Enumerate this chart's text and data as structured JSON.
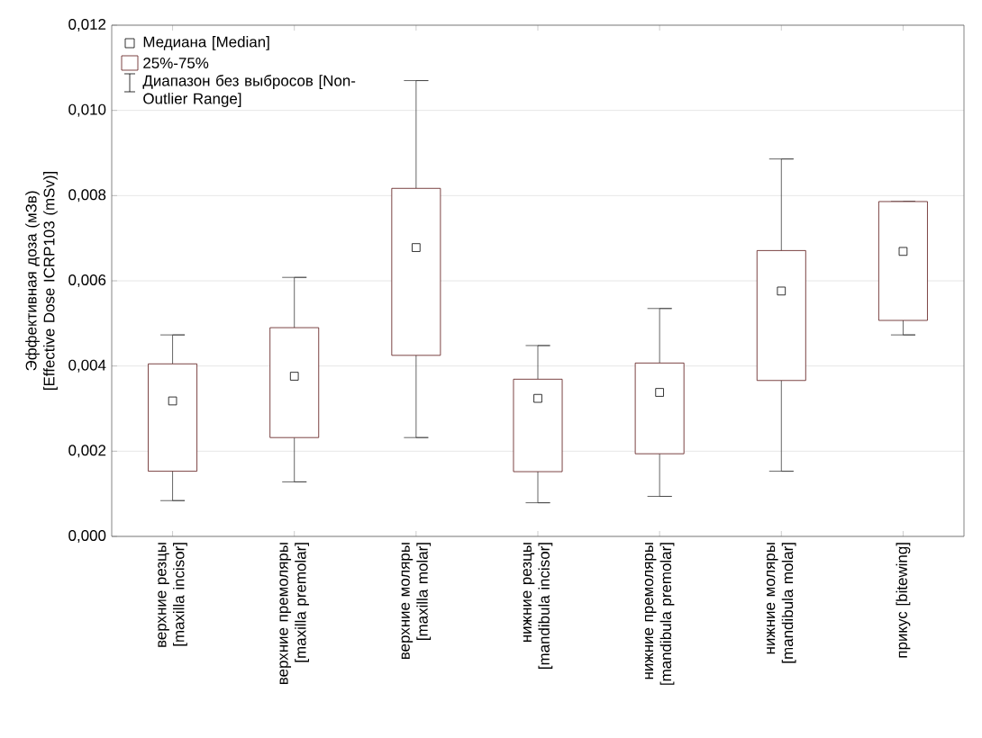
{
  "chart_data": {
    "type": "box",
    "ylabel": "Эффективная доза (мЗв) [Effective Dose ICRP103 (mSv)]",
    "categories": [
      "верхние резцы [maxilla incisor]",
      "верхние премоляры [maxilla premolar]",
      "верхние моляры [maxilla molar]",
      "нижние резцы [mandibula incisor]",
      "нижние премоляры [mandibula premolar]",
      "нижние моляры [mandibula molar]",
      "прикус [bitewing]"
    ],
    "boxes": [
      {
        "low": 0.00084,
        "q1": 0.00153,
        "median": 0.00318,
        "q3": 0.00405,
        "high": 0.00473
      },
      {
        "low": 0.00128,
        "q1": 0.00232,
        "median": 0.00376,
        "q3": 0.0049,
        "high": 0.00608
      },
      {
        "low": 0.00232,
        "q1": 0.00425,
        "median": 0.00678,
        "q3": 0.00817,
        "high": 0.0107
      },
      {
        "low": 0.00079,
        "q1": 0.00152,
        "median": 0.00324,
        "q3": 0.00369,
        "high": 0.00448
      },
      {
        "low": 0.00094,
        "q1": 0.00194,
        "median": 0.00338,
        "q3": 0.00407,
        "high": 0.00535
      },
      {
        "low": 0.00153,
        "q1": 0.00366,
        "median": 0.00576,
        "q3": 0.00671,
        "high": 0.00886
      },
      {
        "low": 0.00473,
        "q1": 0.00507,
        "median": 0.00669,
        "q3": 0.00786,
        "high": 0.00786
      }
    ],
    "color": "#5a1414",
    "annotations": [
      "Медиана [Median]",
      "25%-75%",
      "Диапазон без выбросов [Non-Outlier Range]"
    ],
    "marker": "square",
    "grid": "y",
    "ylim": [
      0,
      0.012
    ],
    "yticks": [
      {
        "value": 0,
        "label": "0,000"
      },
      {
        "value": 0.002,
        "label": "0,002"
      },
      {
        "value": 0.004,
        "label": "0,004"
      },
      {
        "value": 0.006,
        "label": "0,006"
      },
      {
        "value": 0.008,
        "label": "0,008"
      },
      {
        "value": 0.01,
        "label": "0,010"
      },
      {
        "value": 0.012,
        "label": "0,012"
      }
    ]
  }
}
